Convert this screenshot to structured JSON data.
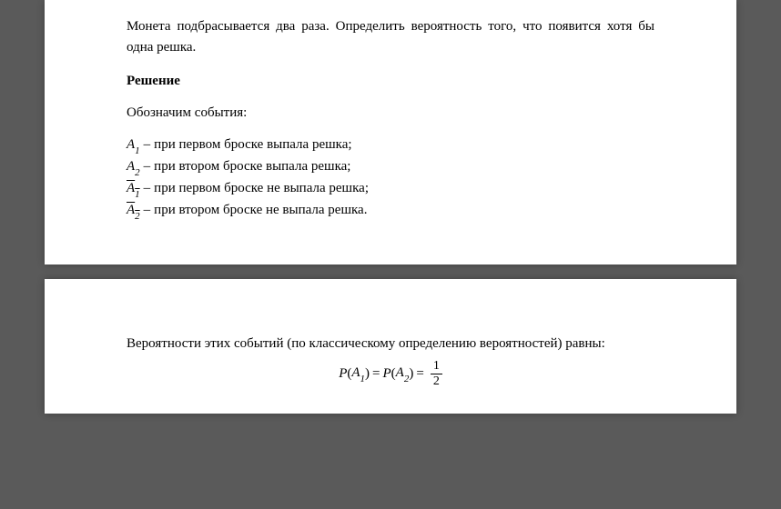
{
  "page1": {
    "problem": "Монета подбрасывается два раза. Определить вероятность того, что появится хотя бы одна решка.",
    "solution_heading": "Решение",
    "designate": "Обозначим события:",
    "events": [
      {
        "var": "A",
        "sub": "1",
        "bar": false,
        "desc": "при первом броске выпала решка;"
      },
      {
        "var": "A",
        "sub": "2",
        "bar": false,
        "desc": "при втором броске выпала решка;"
      },
      {
        "var": "A",
        "sub": "1",
        "bar": true,
        "desc": "при первом броске не выпала решка;"
      },
      {
        "var": "A",
        "sub": "2",
        "bar": true,
        "desc": "при втором броске не выпала решка."
      }
    ]
  },
  "page2": {
    "prob_intro": "Вероятности этих событий (по классическому определению вероятностей) равны:",
    "equation": {
      "lhs_P": "P",
      "var1": "A",
      "sub1": "1",
      "eq": "=",
      "var2": "A",
      "sub2": "2",
      "frac_num": "1",
      "frac_den": "2"
    }
  },
  "style": {
    "bg": "#5a5a5a",
    "page_bg": "#ffffff",
    "text_color": "#000000",
    "font_size": 15
  }
}
